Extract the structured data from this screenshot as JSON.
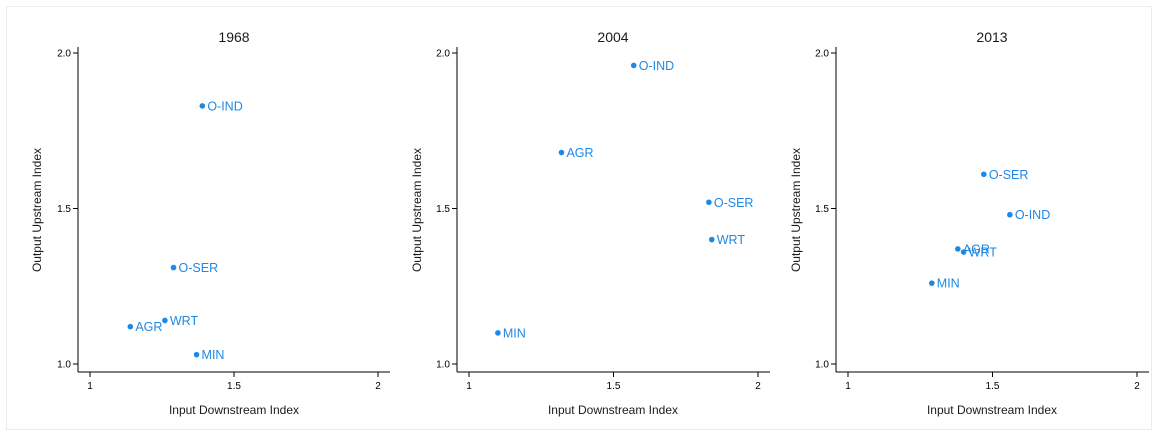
{
  "colors": {
    "marker": "#1e88e5",
    "axis": "#000000",
    "text": "#1a1a1a"
  },
  "chart_data": [
    {
      "type": "scatter",
      "title": "1968",
      "xlabel": "Input Downstream Index",
      "ylabel": "Output Upstream Index",
      "xlim": [
        1,
        2
      ],
      "ylim": [
        1,
        2
      ],
      "xticks": [
        "1",
        "1.5",
        "2"
      ],
      "yticks": [
        "1.0",
        "1.5",
        "2.0"
      ],
      "points": [
        {
          "label": "O-IND",
          "x": 1.39,
          "y": 1.83
        },
        {
          "label": "O-SER",
          "x": 1.29,
          "y": 1.31
        },
        {
          "label": "WRT",
          "x": 1.26,
          "y": 1.14
        },
        {
          "label": "AGR",
          "x": 1.14,
          "y": 1.12
        },
        {
          "label": "MIN",
          "x": 1.37,
          "y": 1.03
        }
      ]
    },
    {
      "type": "scatter",
      "title": "2004",
      "xlabel": "Input Downstream Index",
      "ylabel": "Output Upstream Index",
      "xlim": [
        1,
        2
      ],
      "ylim": [
        1,
        2
      ],
      "xticks": [
        "1",
        "1.5",
        "2"
      ],
      "yticks": [
        "1.0",
        "1.5",
        "2.0"
      ],
      "points": [
        {
          "label": "O-IND",
          "x": 1.57,
          "y": 1.96
        },
        {
          "label": "AGR",
          "x": 1.32,
          "y": 1.68
        },
        {
          "label": "O-SER",
          "x": 1.83,
          "y": 1.52
        },
        {
          "label": "WRT",
          "x": 1.84,
          "y": 1.4
        },
        {
          "label": "MIN",
          "x": 1.1,
          "y": 1.1
        }
      ]
    },
    {
      "type": "scatter",
      "title": "2013",
      "xlabel": "Input Downstream Index",
      "ylabel": "Output Upstream Index",
      "xlim": [
        1,
        2
      ],
      "ylim": [
        1,
        2
      ],
      "xticks": [
        "1",
        "1.5",
        "2"
      ],
      "yticks": [
        "1.0",
        "1.5",
        "2.0"
      ],
      "points": [
        {
          "label": "O-SER",
          "x": 1.47,
          "y": 1.61
        },
        {
          "label": "O-IND",
          "x": 1.56,
          "y": 1.48
        },
        {
          "label": "AGR",
          "x": 1.38,
          "y": 1.37
        },
        {
          "label": "WRT",
          "x": 1.4,
          "y": 1.36
        },
        {
          "label": "MIN",
          "x": 1.29,
          "y": 1.26
        }
      ]
    }
  ]
}
